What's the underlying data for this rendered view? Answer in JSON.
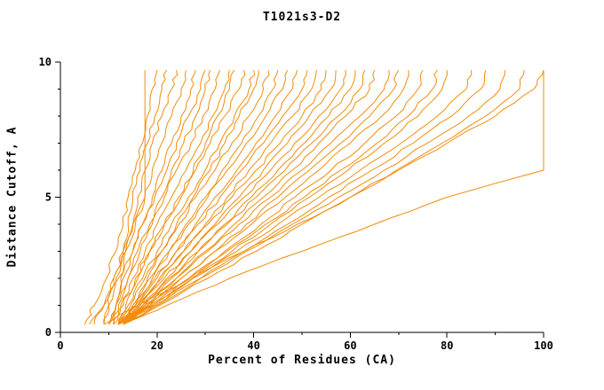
{
  "chart_data": {
    "type": "line",
    "title": "T1021s3-D2",
    "xlabel": "Percent of Residues (CA)",
    "ylabel": "Distance Cutoff, A",
    "xlim": [
      0,
      100
    ],
    "ylim": [
      0,
      10
    ],
    "x_ticks": {
      "major": [
        0,
        20,
        40,
        60,
        80,
        100
      ],
      "minor": [
        10,
        30,
        50,
        70,
        90
      ]
    },
    "y_ticks": {
      "major": [
        0,
        5,
        10
      ],
      "minor": [
        1,
        2,
        3,
        4,
        6,
        7,
        8,
        9
      ]
    },
    "grid": false,
    "legend": "none",
    "line_color": "#f28c0a",
    "axis_color": "#000000",
    "y_levels": [
      0.3,
      1,
      2,
      3,
      4,
      5,
      6,
      7,
      8,
      9,
      9.7
    ],
    "series": [
      [
        10,
        11.5,
        12.5,
        13.5,
        15,
        17.5,
        17.5,
        17.5,
        17.5,
        17.5,
        17.5
      ],
      [
        5,
        7,
        9.5,
        11.5,
        13,
        14,
        15.5,
        17,
        18,
        19,
        20
      ],
      [
        9,
        10,
        11,
        13,
        14,
        15,
        16.5,
        18,
        19.5,
        21,
        22
      ],
      [
        9,
        10,
        11.5,
        13,
        15,
        16,
        17.5,
        19,
        21,
        23,
        24
      ],
      [
        7,
        9,
        11,
        13.5,
        15.5,
        17.5,
        19,
        21,
        23,
        25,
        26
      ],
      [
        10,
        11.5,
        13,
        15,
        17,
        19,
        21,
        23,
        25,
        27,
        28
      ],
      [
        6,
        9,
        12,
        15,
        17,
        19.5,
        22,
        24,
        26.5,
        29,
        30
      ],
      [
        11,
        12,
        14,
        16,
        18.5,
        21,
        23,
        25.5,
        28,
        30,
        31
      ],
      [
        10,
        11.5,
        14,
        16.5,
        19,
        21.5,
        24,
        27,
        29.5,
        32,
        33
      ],
      [
        11,
        12.5,
        15,
        17.5,
        20,
        23,
        26,
        29,
        31.5,
        34,
        35
      ],
      [
        12,
        13.5,
        16,
        18.5,
        21.5,
        24.5,
        27.5,
        30,
        32.5,
        35,
        36
      ],
      [
        11,
        13,
        15.5,
        18.5,
        21.5,
        25,
        28,
        31,
        34,
        37,
        38
      ],
      [
        12,
        14,
        17,
        20,
        23,
        26.5,
        30,
        33,
        36,
        39,
        40
      ],
      [
        13,
        15,
        18,
        21,
        24,
        27.5,
        31,
        34,
        37,
        40,
        41
      ],
      [
        12,
        14.5,
        17.5,
        21,
        24.5,
        28,
        32,
        35.5,
        39,
        42,
        43
      ],
      [
        13,
        15.5,
        19,
        22.5,
        26,
        30,
        33.5,
        37.5,
        41,
        44,
        45
      ],
      [
        12,
        15,
        18.5,
        22.5,
        26.5,
        30.5,
        34.5,
        38.5,
        42.5,
        46,
        47
      ],
      [
        13,
        16,
        20,
        24,
        28,
        32,
        36.5,
        40.5,
        44.5,
        48,
        49
      ],
      [
        12,
        15.5,
        19.5,
        24,
        28.5,
        33,
        37.5,
        42,
        46,
        50,
        51
      ],
      [
        13,
        16.5,
        21,
        25.5,
        30,
        34.5,
        39,
        43.5,
        48,
        52,
        53
      ],
      [
        12,
        16,
        20.5,
        25.5,
        30.5,
        35.5,
        40.5,
        45.5,
        50,
        54,
        55
      ],
      [
        13,
        17,
        22,
        27,
        32,
        37,
        42,
        47,
        51.5,
        56,
        57
      ],
      [
        12,
        16.5,
        21.5,
        27,
        32.5,
        38,
        43.5,
        48.5,
        53.5,
        58,
        59
      ],
      [
        13,
        17.5,
        23,
        28.5,
        34,
        39.5,
        45,
        50.5,
        55.5,
        60,
        61
      ],
      [
        12,
        17,
        22.5,
        28.5,
        34.5,
        40.5,
        46.5,
        52,
        57.5,
        62,
        63
      ],
      [
        13,
        18,
        24,
        30,
        36,
        42,
        48,
        53.5,
        59,
        64,
        65
      ],
      [
        12,
        17.5,
        24,
        30.5,
        37,
        43.5,
        50,
        56,
        62,
        67,
        68
      ],
      [
        13,
        18.5,
        25,
        32,
        38.5,
        45,
        51.5,
        58,
        64,
        69,
        70
      ],
      [
        12,
        18,
        25,
        32,
        39.5,
        46.5,
        53.5,
        60,
        66.5,
        71,
        72
      ],
      [
        13,
        19,
        26.5,
        34,
        41.5,
        48.5,
        56,
        63,
        69.5,
        74,
        75
      ],
      [
        12,
        18.5,
        26.5,
        34.5,
        42.5,
        50.5,
        58,
        65.5,
        72,
        77,
        78
      ],
      [
        13,
        19.5,
        27.5,
        35.5,
        43.5,
        51.5,
        59.5,
        67,
        74,
        79,
        80
      ],
      [
        12,
        19,
        27.5,
        36.5,
        45,
        53.5,
        62,
        70.5,
        78,
        84,
        85
      ],
      [
        13,
        20,
        29,
        38,
        47,
        55.5,
        64.5,
        73,
        81,
        87,
        88
      ],
      [
        12,
        19.5,
        29,
        38.5,
        48,
        57.5,
        67,
        76,
        84.5,
        91,
        92
      ],
      [
        13,
        20.5,
        30.5,
        40.5,
        50,
        60,
        69.5,
        79,
        88,
        95,
        96
      ],
      [
        9,
        16,
        27,
        38,
        49,
        60,
        70,
        80,
        90,
        98,
        100
      ],
      [
        13,
        22,
        35,
        50,
        65,
        80,
        100,
        100,
        100,
        100,
        100
      ]
    ]
  }
}
